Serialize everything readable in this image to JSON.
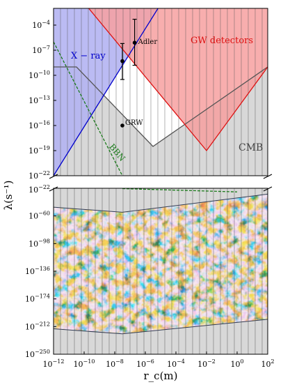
{
  "chart_data": {
    "type": "area",
    "title": "",
    "xlabel": "r_c(m)",
    "ylabel": "λ(s⁻¹)",
    "x_scale": "log",
    "y_scale": "log",
    "xlim": [
      1e-12,
      100
    ],
    "x_ticks": [
      {
        "exp": -12,
        "label": "10",
        "sup": "−12"
      },
      {
        "exp": -10,
        "label": "10",
        "sup": "−10"
      },
      {
        "exp": -8,
        "label": "10",
        "sup": "−8"
      },
      {
        "exp": -6,
        "label": "10",
        "sup": "−6"
      },
      {
        "exp": -4,
        "label": "10",
        "sup": "−4"
      },
      {
        "exp": -2,
        "label": "10",
        "sup": "−2"
      },
      {
        "exp": 0,
        "label": "10",
        "sup": "0"
      },
      {
        "exp": 2,
        "label": "10",
        "sup": "2"
      }
    ],
    "upper_panel": {
      "ylim": [
        1e-22,
        0.01
      ],
      "y_ticks": [
        {
          "exp": -4,
          "label": "10",
          "sup": "−4"
        },
        {
          "exp": -7,
          "label": "10",
          "sup": "−7"
        },
        {
          "exp": -10,
          "label": "10",
          "sup": "−10"
        },
        {
          "exp": -13,
          "label": "10",
          "sup": "−13"
        },
        {
          "exp": -16,
          "label": "10",
          "sup": "−16"
        },
        {
          "exp": -19,
          "label": "10",
          "sup": "−19"
        },
        {
          "exp": -22,
          "label": "10",
          "sup": "−22"
        }
      ]
    },
    "lower_panel": {
      "ylim": [
        1e-250,
        1e-22
      ],
      "y_ticks": [
        {
          "exp": -22,
          "label": "10",
          "sup": "−22"
        },
        {
          "exp": -60,
          "label": "10",
          "sup": "−60"
        },
        {
          "exp": -98,
          "label": "10",
          "sup": "−98"
        },
        {
          "exp": -136,
          "label": "10",
          "sup": "−136"
        },
        {
          "exp": -174,
          "label": "10",
          "sup": "−174"
        },
        {
          "exp": -212,
          "label": "10",
          "sup": "−212"
        },
        {
          "exp": -250,
          "label": "10",
          "sup": "−250"
        }
      ]
    },
    "regions": {
      "xray": {
        "label": "X − ray",
        "color": "#0000cc",
        "fill": "#b4b4f2",
        "boundary_log10": [
          [
            -12,
            -22
          ],
          [
            -5,
            -1.5
          ]
        ]
      },
      "gw": {
        "label": "GW detectors",
        "color": "#dd1111",
        "fill": "#f7a0a0",
        "boundary_log10": [
          [
            -9.7,
            -2
          ],
          [
            -2,
            -19
          ],
          [
            2,
            -9
          ]
        ]
      },
      "cmb": {
        "label": "CMB",
        "color": "#555555",
        "fill": "#d8d8d8",
        "upper_boundary_log10": [
          [
            -12,
            -9
          ],
          [
            -10.5,
            -9
          ],
          [
            -5.5,
            -18.5
          ],
          [
            2,
            -9
          ]
        ]
      },
      "bbn": {
        "label": "BBN",
        "color": "#1a7a1a",
        "line_log10": [
          [
            -12,
            -6
          ],
          [
            -7.5,
            -22
          ],
          [
            -7.5,
            -22.5
          ],
          [
            0,
            -27
          ]
        ]
      }
    },
    "allowed_band_log10": {
      "upper": [
        [
          -12,
          -48
        ],
        [
          -7.5,
          -55
        ],
        [
          2,
          -30
        ]
      ],
      "lower": [
        [
          -12,
          -215
        ],
        [
          -7.5,
          -222
        ],
        [
          2,
          -202
        ]
      ]
    },
    "points": [
      {
        "label": "GRW",
        "x_exp": -7.5,
        "y_exp": -16,
        "err_low": null,
        "err_high": null
      },
      {
        "label": "Adler",
        "x_exp": -7.5,
        "y_exp": -8.3,
        "err_low": -10.5,
        "err_high": -6.2
      },
      {
        "label": "Adler",
        "x_exp": -6.7,
        "y_exp": -6.1,
        "err_low": -8.8,
        "err_high": -3.3
      }
    ]
  }
}
